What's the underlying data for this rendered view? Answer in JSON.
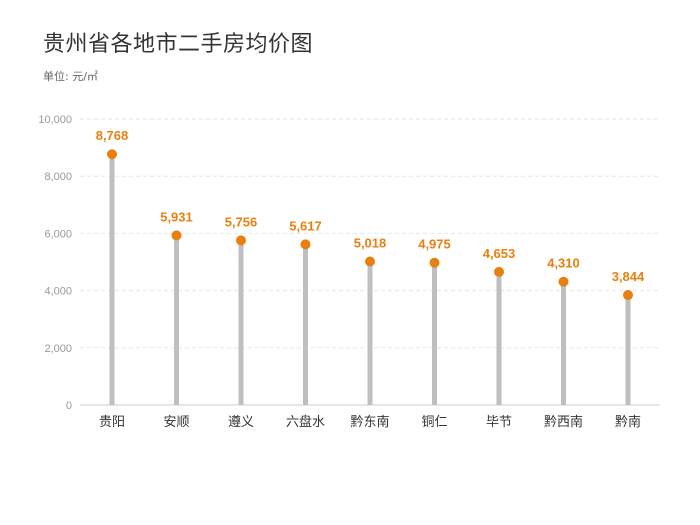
{
  "title": "贵州省各地市二手房均价图",
  "unit": "单位: 元/㎡",
  "colors": {
    "marker": "#E8800F",
    "stem": "#BFBFBF",
    "grid": "#E6E6E6",
    "value_label": "#E8800F"
  },
  "chart_data": {
    "type": "bar",
    "style": "lollipop",
    "categories": [
      "贵阳",
      "安顺",
      "遵义",
      "六盘水",
      "黔东南",
      "铜仁",
      "毕节",
      "黔西南",
      "黔南"
    ],
    "values": [
      8768,
      5931,
      5756,
      5617,
      5018,
      4975,
      4653,
      4310,
      3844
    ],
    "value_labels": [
      "8,768",
      "5,931",
      "5,756",
      "5,617",
      "5,018",
      "4,975",
      "4,653",
      "4,310",
      "3,844"
    ],
    "yticks": [
      0,
      2000,
      4000,
      6000,
      8000,
      10000
    ],
    "ytick_labels": [
      "0",
      "2,000",
      "4,000",
      "6,000",
      "8,000",
      "10,000"
    ],
    "ylim": [
      0,
      10000
    ],
    "grid": true,
    "legend": false
  }
}
